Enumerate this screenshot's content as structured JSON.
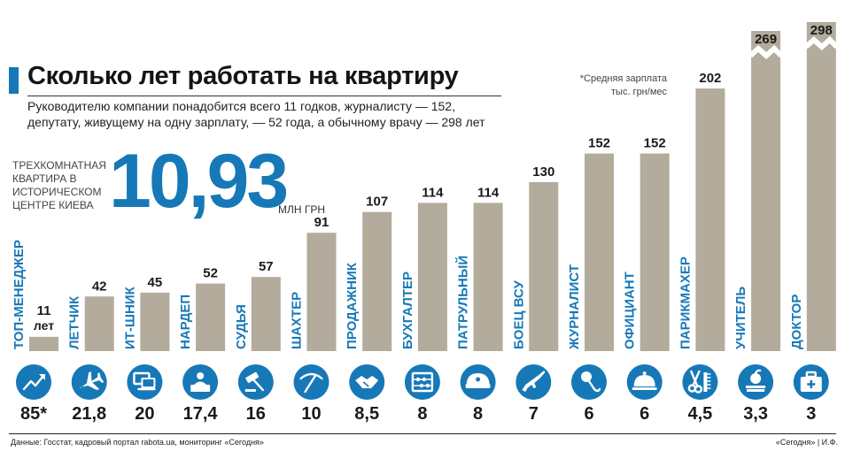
{
  "header": {
    "title": "Сколько лет работать на квартиру",
    "subtitle": "Руководителю компании понадобится всего 11 годков, журналисту — 152, депутату, живущему на одну зарплату, — 52 года, а обычному врачу — 298 лет"
  },
  "apartment": {
    "label": "Трехкомнатная квартира в историческом центре Киева",
    "value": "10,93",
    "unit": "млн грн"
  },
  "legend_note": "*Средняя зарплата тыс. грн/мес",
  "footer": {
    "source": "Данные: Госстат, кадровый портал rabota.ua, мониторинг «Сегодня»",
    "credit": "«Сегодня» | И.Ф."
  },
  "colors": {
    "bar": "#b3ab9c",
    "accent": "#1778b7",
    "icon_circle": "#1778b7"
  },
  "chart_data": {
    "type": "bar",
    "title": "Сколько лет работать на квартиру",
    "categories": [
      "топ-менеджер",
      "летчик",
      "ит-шник",
      "нардеп",
      "судья",
      "шахтер",
      "продажник",
      "бухгалтер",
      "патрульный",
      "боец ВСУ",
      "журналист",
      "официант",
      "парикмахер",
      "учитель",
      "доктор"
    ],
    "series": [
      {
        "values": [
          11,
          42,
          45,
          52,
          57,
          91,
          107,
          114,
          114,
          130,
          152,
          152,
          202,
          269,
          298
        ]
      },
      {
        "values": [
          85,
          21.8,
          20,
          17.4,
          16,
          10,
          8.5,
          8,
          8,
          7,
          6,
          6,
          4.5,
          3.3,
          3
        ]
      }
    ],
    "value_labels": [
      "11 лет",
      "42",
      "45",
      "52",
      "57",
      "91",
      "107",
      "114",
      "114",
      "130",
      "152",
      "152",
      "202",
      "269",
      "298"
    ],
    "salary_labels": [
      "85*",
      "21,8",
      "20",
      "17,4",
      "16",
      "10",
      "8,5",
      "8",
      "8",
      "7",
      "6",
      "6",
      "4,5",
      "3,3",
      "3"
    ],
    "category_labels": [
      "ТОП-МЕНЕДЖЕР",
      "ЛЕТЧИК",
      "ИТ-ШНИК",
      "НАРДЕП",
      "СУДЬЯ",
      "ШАХТЕР",
      "ПРОДАЖНИК",
      "БУХГАЛТЕР",
      "ПАТРУЛЬНЫЙ",
      "БОЕЦ ВСУ",
      "ЖУРНАЛИСТ",
      "ОФИЦИАНТ",
      "ПАРИКМАХЕР",
      "УЧИТЕЛЬ",
      "ДОКТОР"
    ],
    "icons": [
      "trend-up-icon",
      "airplane-icon",
      "computer-icon",
      "speaker-podium-icon",
      "gavel-icon",
      "pickaxe-icon",
      "handshake-icon",
      "abacus-icon",
      "police-cap-icon",
      "rifle-icon",
      "microphone-icon",
      "cloche-icon",
      "scissors-comb-icon",
      "apple-books-icon",
      "medical-kit-icon"
    ],
    "broken_axis": [
      "учитель",
      "доктор"
    ],
    "grid": false
  }
}
